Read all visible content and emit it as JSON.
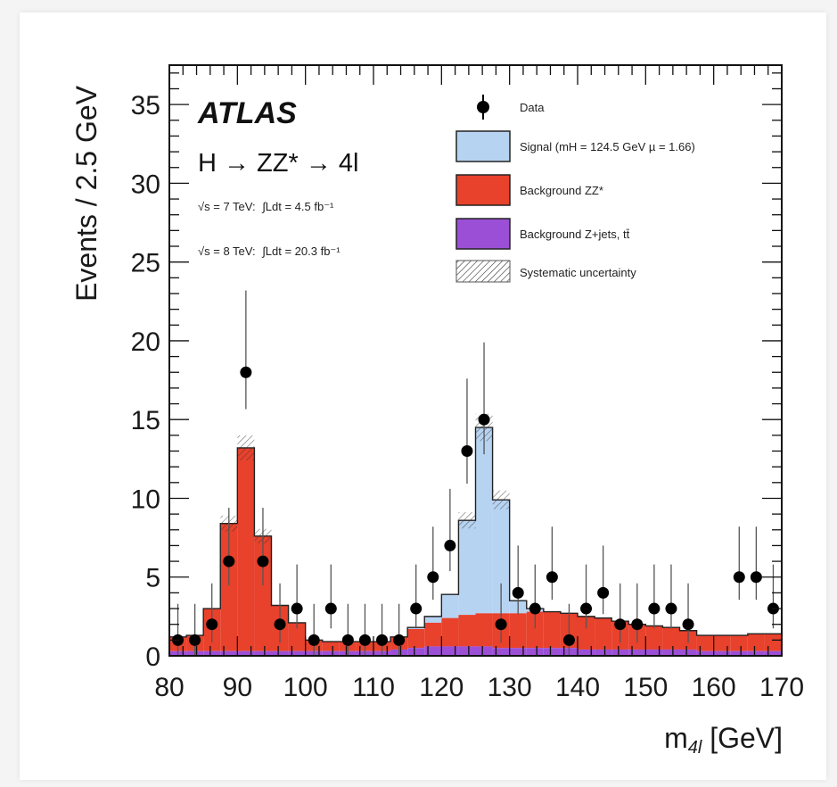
{
  "chart_data": {
    "type": "bar",
    "experiment_label": "ATLAS",
    "process_label": "H → ZZ* → 4l",
    "lumi": [
      {
        "energy": "√s = 7 TeV:",
        "integral": "∫Ldt = 4.5 fb⁻¹"
      },
      {
        "energy": "√s = 8 TeV:",
        "integral": "∫Ldt = 20.3 fb⁻¹"
      }
    ],
    "xlabel": "m4l [GeV]",
    "xlabel_main": "m",
    "xlabel_sub": "4l",
    "xlabel_unit": " [GeV]",
    "ylabel": "Events / 2.5 GeV",
    "xlim": [
      80,
      170
    ],
    "ylim": [
      0,
      37.5
    ],
    "x_ticks": [
      80,
      90,
      100,
      110,
      120,
      130,
      140,
      150,
      160,
      170
    ],
    "y_ticks": [
      0,
      5,
      10,
      15,
      20,
      25,
      30,
      35
    ],
    "bin_width": 2.5,
    "bin_low_edges": [
      80,
      82.5,
      85,
      87.5,
      90,
      92.5,
      95,
      97.5,
      100,
      102.5,
      105,
      107.5,
      110,
      112.5,
      115,
      117.5,
      120,
      122.5,
      125,
      127.5,
      130,
      132.5,
      135,
      137.5,
      140,
      142.5,
      145,
      147.5,
      150,
      152.5,
      155,
      157.5,
      160,
      162.5,
      165,
      167.5
    ],
    "legend": {
      "data": "Data",
      "signal": "Signal (mH = 124.5 GeV µ = 1.66)",
      "zz": "Background ZZ*",
      "zjets": "Background Z+jets, tt̄",
      "syst": "Systematic uncertainty"
    },
    "colors": {
      "signal": "#b7d3f2",
      "zz": "#e8412c",
      "zjets": "#9b4fd6",
      "data": "#000000"
    },
    "series": [
      {
        "name": "Background Z+jets, tt̄",
        "values": [
          0.3,
          0.3,
          0.3,
          0.3,
          0.3,
          0.3,
          0.3,
          0.3,
          0.3,
          0.3,
          0.3,
          0.3,
          0.3,
          0.4,
          0.5,
          0.6,
          0.6,
          0.6,
          0.6,
          0.5,
          0.5,
          0.5,
          0.5,
          0.5,
          0.4,
          0.4,
          0.4,
          0.4,
          0.4,
          0.4,
          0.4,
          0.3,
          0.3,
          0.3,
          0.3,
          0.3
        ]
      },
      {
        "name": "Background ZZ*",
        "values": [
          0.9,
          1.0,
          2.7,
          8.1,
          12.9,
          7.3,
          2.9,
          1.8,
          0.7,
          0.6,
          0.6,
          0.6,
          0.6,
          0.8,
          1.2,
          1.5,
          1.8,
          2.0,
          2.1,
          2.2,
          2.2,
          2.3,
          2.3,
          2.2,
          2.1,
          2.0,
          1.8,
          1.6,
          1.5,
          1.4,
          1.2,
          1.0,
          1.0,
          1.0,
          1.1,
          1.1
        ]
      },
      {
        "name": "Signal (mH = 124.5 GeV µ = 1.66)",
        "values": [
          0,
          0,
          0,
          0,
          0,
          0,
          0,
          0,
          0,
          0,
          0,
          0,
          0,
          0,
          0.1,
          0.4,
          1.5,
          6.0,
          11.8,
          7.2,
          0.8,
          0.2,
          0,
          0,
          0,
          0,
          0,
          0,
          0,
          0,
          0,
          0,
          0,
          0,
          0,
          0
        ]
      }
    ],
    "data_points": [
      {
        "x": 81.25,
        "y": 1,
        "err": 2.3
      },
      {
        "x": 83.75,
        "y": 1,
        "err": 2.3
      },
      {
        "x": 86.25,
        "y": 2,
        "err": 2.6
      },
      {
        "x": 88.75,
        "y": 6,
        "err": 3.4
      },
      {
        "x": 91.25,
        "y": 18,
        "err": 5.2
      },
      {
        "x": 93.75,
        "y": 6,
        "err": 3.4
      },
      {
        "x": 96.25,
        "y": 2,
        "err": 2.6
      },
      {
        "x": 98.75,
        "y": 3,
        "err": 2.8
      },
      {
        "x": 101.25,
        "y": 1,
        "err": 2.3
      },
      {
        "x": 103.75,
        "y": 3,
        "err": 2.8
      },
      {
        "x": 106.25,
        "y": 1,
        "err": 2.3
      },
      {
        "x": 108.75,
        "y": 1,
        "err": 2.3
      },
      {
        "x": 111.25,
        "y": 1,
        "err": 2.3
      },
      {
        "x": 113.75,
        "y": 1,
        "err": 2.3
      },
      {
        "x": 116.25,
        "y": 3,
        "err": 2.8
      },
      {
        "x": 118.75,
        "y": 5,
        "err": 3.2
      },
      {
        "x": 121.25,
        "y": 7,
        "err": 3.6
      },
      {
        "x": 123.75,
        "y": 13,
        "err": 4.6
      },
      {
        "x": 126.25,
        "y": 15,
        "err": 4.9
      },
      {
        "x": 128.75,
        "y": 2,
        "err": 2.6
      },
      {
        "x": 131.25,
        "y": 4,
        "err": 3.0
      },
      {
        "x": 133.75,
        "y": 3,
        "err": 2.8
      },
      {
        "x": 136.25,
        "y": 5,
        "err": 3.2
      },
      {
        "x": 138.75,
        "y": 1,
        "err": 2.3
      },
      {
        "x": 141.25,
        "y": 3,
        "err": 2.8
      },
      {
        "x": 143.75,
        "y": 4,
        "err": 3.0
      },
      {
        "x": 146.25,
        "y": 2,
        "err": 2.6
      },
      {
        "x": 148.75,
        "y": 2,
        "err": 2.6
      },
      {
        "x": 151.25,
        "y": 3,
        "err": 2.8
      },
      {
        "x": 153.75,
        "y": 3,
        "err": 2.8
      },
      {
        "x": 156.25,
        "y": 2,
        "err": 2.6
      },
      {
        "x": 163.75,
        "y": 5,
        "err": 3.2
      },
      {
        "x": 166.25,
        "y": 5,
        "err": 3.2
      },
      {
        "x": 168.75,
        "y": 3,
        "err": 2.8
      }
    ],
    "grid": false,
    "legend_placement": "top-right"
  }
}
